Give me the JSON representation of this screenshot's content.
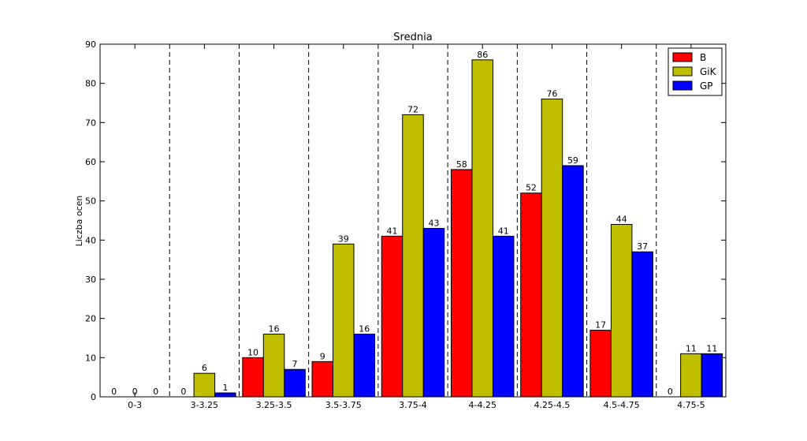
{
  "chart_data": {
    "type": "bar",
    "title": "Srednia",
    "xlabel": "",
    "ylabel": "Liczba ocen",
    "ylim": [
      0,
      90
    ],
    "yticks": [
      0,
      10,
      20,
      30,
      40,
      50,
      60,
      70,
      80,
      90
    ],
    "categories": [
      "0-3",
      "3-3.25",
      "3.25-3.5",
      "3.5-3.75",
      "3.75-4",
      "4-4.25",
      "4.25-4.5",
      "4.5-4.75",
      "4.75-5"
    ],
    "series": [
      {
        "name": "B",
        "color": "#ff0000",
        "values": [
          0,
          0,
          10,
          9,
          41,
          58,
          52,
          17,
          0
        ]
      },
      {
        "name": "GiK",
        "color": "#bfbf00",
        "values": [
          0,
          6,
          16,
          39,
          72,
          86,
          76,
          44,
          11
        ]
      },
      {
        "name": "GP",
        "color": "#0000ff",
        "values": [
          0,
          1,
          7,
          16,
          43,
          41,
          59,
          37,
          11
        ]
      }
    ],
    "separators": "dashed vertical lines between category groups",
    "legend_position": "top-right",
    "grid": false,
    "data_labels": true
  }
}
